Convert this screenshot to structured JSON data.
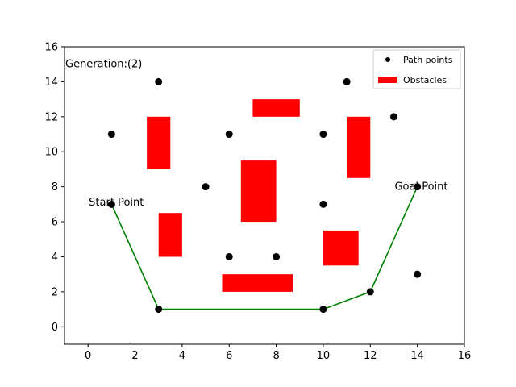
{
  "chart_data": {
    "type": "scatter",
    "xlim": [
      -1,
      16
    ],
    "ylim": [
      -1,
      16
    ],
    "x_ticks": [
      0,
      2,
      4,
      6,
      8,
      10,
      12,
      14,
      16
    ],
    "y_ticks": [
      0,
      2,
      4,
      6,
      8,
      10,
      12,
      14,
      16
    ],
    "grid": false,
    "legend_position": "top-right",
    "legend": [
      {
        "label": "Path points",
        "kind": "marker",
        "color": "#000000"
      },
      {
        "label": "Obstacles",
        "kind": "patch",
        "color": "#ff0000"
      }
    ],
    "points": [
      {
        "x": 1,
        "y": 11
      },
      {
        "x": 3,
        "y": 14
      },
      {
        "x": 6,
        "y": 11
      },
      {
        "x": 5,
        "y": 8
      },
      {
        "x": 10,
        "y": 11
      },
      {
        "x": 11,
        "y": 14
      },
      {
        "x": 13,
        "y": 12
      },
      {
        "x": 10,
        "y": 7
      },
      {
        "x": 6,
        "y": 4
      },
      {
        "x": 8,
        "y": 4
      },
      {
        "x": 14,
        "y": 3
      },
      {
        "x": 1,
        "y": 7
      },
      {
        "x": 3,
        "y": 1
      },
      {
        "x": 10,
        "y": 1
      },
      {
        "x": 12,
        "y": 2
      },
      {
        "x": 14,
        "y": 8
      }
    ],
    "obstacles": [
      {
        "x0": 2.5,
        "y0": 9,
        "x1": 3.5,
        "y1": 12
      },
      {
        "x0": 7,
        "y0": 12,
        "x1": 9,
        "y1": 13
      },
      {
        "x0": 6.5,
        "y0": 6,
        "x1": 8,
        "y1": 9.5
      },
      {
        "x0": 11,
        "y0": 8.5,
        "x1": 12,
        "y1": 12
      },
      {
        "x0": 3,
        "y0": 4,
        "x1": 4,
        "y1": 6.5
      },
      {
        "x0": 10,
        "y0": 3.5,
        "x1": 11.5,
        "y1": 5.5
      },
      {
        "x0": 5.7,
        "y0": 2,
        "x1": 8.7,
        "y1": 3
      }
    ],
    "path": {
      "color": "#008000",
      "points": [
        [
          1,
          7
        ],
        [
          3,
          1
        ],
        [
          10,
          1
        ],
        [
          12,
          2
        ],
        [
          14,
          8
        ]
      ]
    },
    "annotations": [
      {
        "text": "Generation:(2)",
        "x": -1,
        "y": 15
      },
      {
        "text": "Start Point",
        "x": 0,
        "y": 7.1
      },
      {
        "text": "Goal Point",
        "x": 13,
        "y": 8
      }
    ],
    "colors": {
      "points": "#000000",
      "obstacles": "#ff0000",
      "path": "#008000"
    }
  }
}
